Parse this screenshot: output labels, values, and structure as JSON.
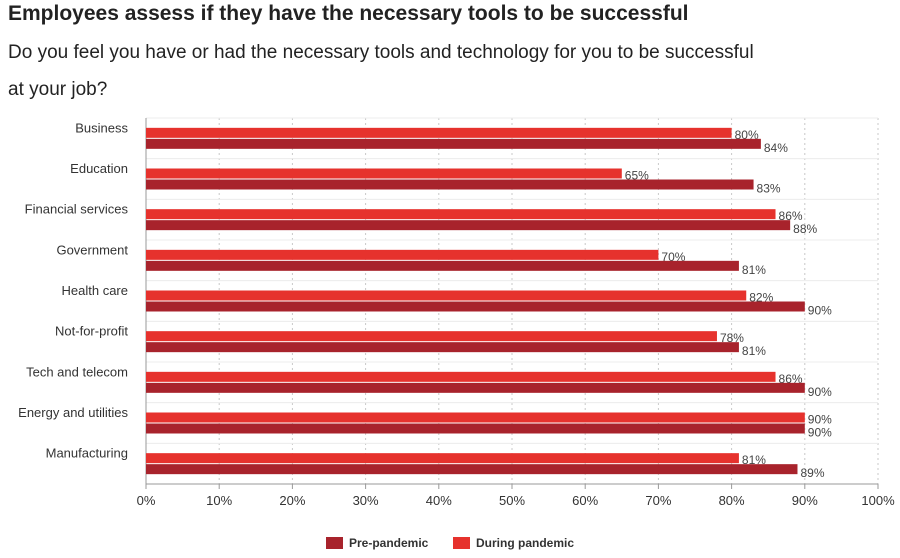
{
  "title": "Employees assess if they have the necessary tools to be successful",
  "subtitle": "Do you feel you have or had the necessary tools and technology for you to be successful at your job?",
  "colors": {
    "pre": "#a8232c",
    "during": "#e6322d",
    "grid": "#c8c8c8",
    "axis": "#999999"
  },
  "legend": {
    "pre_label": "Pre-pandemic",
    "during_label": "During pandemic"
  },
  "chart_data": {
    "type": "bar",
    "orientation": "horizontal",
    "categories": [
      "Business",
      "Education",
      "Financial services",
      "Government",
      "Health care",
      "Not-for-profit",
      "Tech and telecom",
      "Energy and utilities",
      "Manufacturing"
    ],
    "series": [
      {
        "name": "During pandemic",
        "values": [
          80,
          65,
          86,
          70,
          82,
          78,
          86,
          90,
          81
        ]
      },
      {
        "name": "Pre-pandemic",
        "values": [
          84,
          83,
          88,
          81,
          90,
          81,
          90,
          90,
          89
        ]
      }
    ],
    "xlim": [
      0,
      100
    ],
    "xticks": [
      "0%",
      "10%",
      "20%",
      "30%",
      "40%",
      "50%",
      "60%",
      "70%",
      "80%",
      "90%",
      "100%"
    ],
    "value_suffix": "%",
    "grid": true,
    "legend_position": "bottom"
  }
}
